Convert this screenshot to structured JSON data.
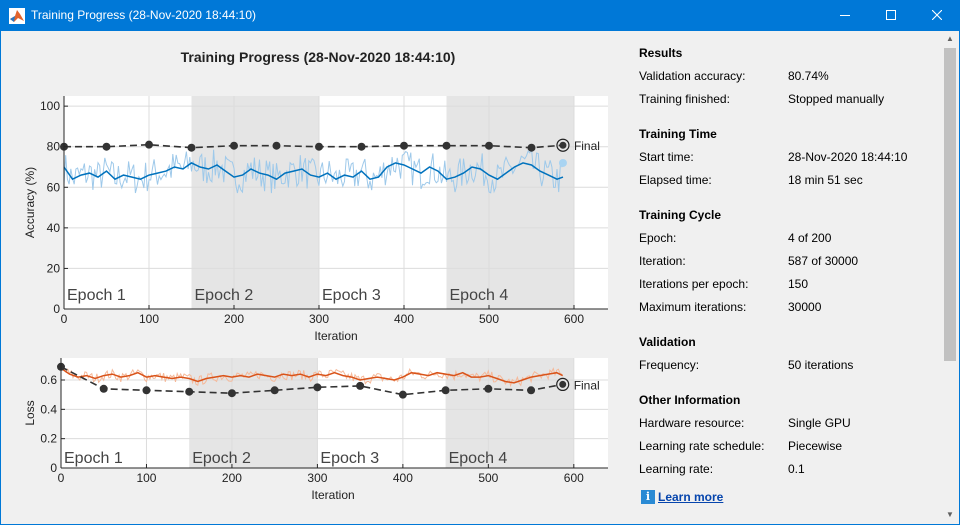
{
  "window": {
    "title": "Training Progress (28-Nov-2020 18:44:10)"
  },
  "plot_title": "Training Progress (28-Nov-2020 18:44:10)",
  "chart_data": [
    {
      "type": "line",
      "ylabel": "Accuracy (%)",
      "xlabel": "Iteration",
      "xlim": [
        0,
        640
      ],
      "ylim": [
        0,
        105
      ],
      "xticks": [
        0,
        100,
        200,
        300,
        400,
        500,
        600
      ],
      "yticks": [
        0,
        20,
        40,
        60,
        80,
        100
      ],
      "grid": true,
      "epoch_bands": [
        {
          "label": "Epoch 1",
          "start": 0,
          "end": 150,
          "shaded": false
        },
        {
          "label": "Epoch 2",
          "start": 150,
          "end": 300,
          "shaded": true
        },
        {
          "label": "Epoch 3",
          "start": 300,
          "end": 450,
          "shaded": false
        },
        {
          "label": "Epoch 4",
          "start": 450,
          "end": 600,
          "shaded": true
        }
      ],
      "smoothed": {
        "x": [
          0,
          10,
          20,
          30,
          40,
          50,
          60,
          70,
          80,
          90,
          100,
          110,
          120,
          130,
          140,
          150,
          160,
          170,
          180,
          190,
          200,
          210,
          220,
          230,
          240,
          250,
          260,
          270,
          280,
          290,
          300,
          310,
          320,
          330,
          340,
          350,
          360,
          370,
          380,
          390,
          400,
          410,
          420,
          430,
          440,
          450,
          460,
          470,
          480,
          490,
          500,
          510,
          520,
          530,
          540,
          550,
          560,
          570,
          580,
          587
        ],
        "y": [
          70,
          64,
          66,
          67,
          65,
          68,
          64,
          66,
          65,
          64,
          66,
          67,
          68,
          70,
          69,
          72,
          70,
          69,
          71,
          68,
          65,
          66,
          69,
          67,
          66,
          64,
          67,
          68,
          69,
          66,
          65,
          67,
          64,
          66,
          65,
          68,
          64,
          65,
          70,
          72,
          71,
          69,
          67,
          70,
          68,
          64,
          65,
          67,
          70,
          69,
          66,
          64,
          67,
          70,
          72,
          71,
          68,
          66,
          64,
          65
        ]
      },
      "raw_color": "#9ec9ea",
      "smoothed_color": "#0072bd",
      "validation": {
        "x": [
          0,
          50,
          100,
          150,
          200,
          250,
          300,
          350,
          400,
          450,
          500,
          550,
          587
        ],
        "y": [
          80,
          80,
          81,
          79.5,
          80.5,
          80.5,
          80,
          80,
          80.5,
          80.5,
          80.5,
          79.5,
          80.74
        ],
        "final_label": "Final",
        "final_x": 587,
        "final_y": 80.74
      },
      "last_raw_point": {
        "x": 587,
        "y": 72
      },
      "validation_color": "#333333"
    },
    {
      "type": "line",
      "ylabel": "Loss",
      "xlabel": "Iteration",
      "xlim": [
        0,
        640
      ],
      "ylim": [
        0,
        0.75
      ],
      "xticks": [
        0,
        100,
        200,
        300,
        400,
        500,
        600
      ],
      "yticks": [
        0,
        0.2,
        0.4,
        0.6
      ],
      "grid": true,
      "epoch_bands": [
        {
          "label": "Epoch 1",
          "start": 0,
          "end": 150,
          "shaded": false
        },
        {
          "label": "Epoch 2",
          "start": 150,
          "end": 300,
          "shaded": true
        },
        {
          "label": "Epoch 3",
          "start": 300,
          "end": 450,
          "shaded": false
        },
        {
          "label": "Epoch 4",
          "start": 450,
          "end": 600,
          "shaded": true
        }
      ],
      "smoothed": {
        "x": [
          0,
          10,
          20,
          30,
          40,
          50,
          60,
          70,
          80,
          90,
          100,
          110,
          120,
          130,
          140,
          150,
          160,
          170,
          180,
          190,
          200,
          210,
          220,
          230,
          240,
          250,
          260,
          270,
          280,
          290,
          300,
          310,
          320,
          330,
          340,
          350,
          360,
          370,
          380,
          390,
          400,
          410,
          420,
          430,
          440,
          450,
          460,
          470,
          480,
          490,
          500,
          510,
          520,
          530,
          540,
          550,
          560,
          570,
          580,
          587
        ],
        "y": [
          0.68,
          0.64,
          0.62,
          0.63,
          0.61,
          0.63,
          0.64,
          0.62,
          0.63,
          0.65,
          0.62,
          0.63,
          0.62,
          0.61,
          0.62,
          0.61,
          0.59,
          0.61,
          0.62,
          0.63,
          0.62,
          0.63,
          0.62,
          0.64,
          0.63,
          0.62,
          0.64,
          0.63,
          0.64,
          0.62,
          0.64,
          0.63,
          0.65,
          0.63,
          0.62,
          0.6,
          0.61,
          0.62,
          0.61,
          0.6,
          0.62,
          0.65,
          0.64,
          0.63,
          0.65,
          0.64,
          0.63,
          0.65,
          0.62,
          0.62,
          0.63,
          0.61,
          0.59,
          0.58,
          0.6,
          0.62,
          0.63,
          0.64,
          0.65,
          0.63
        ]
      },
      "raw_color": "#f5b99a",
      "smoothed_color": "#d95319",
      "validation": {
        "x": [
          0,
          50,
          100,
          150,
          200,
          250,
          300,
          350,
          400,
          450,
          500,
          550,
          587
        ],
        "y": [
          0.69,
          0.54,
          0.53,
          0.52,
          0.51,
          0.53,
          0.55,
          0.56,
          0.5,
          0.53,
          0.54,
          0.53,
          0.57
        ],
        "final_label": "Final",
        "final_x": 587,
        "final_y": 0.57
      },
      "validation_color": "#333333"
    }
  ],
  "info": {
    "sections": [
      {
        "title": "Results",
        "rows": [
          {
            "label": "Validation accuracy:",
            "value": "80.74%"
          },
          {
            "label": "Training finished:",
            "value": "Stopped manually"
          }
        ]
      },
      {
        "title": "Training Time",
        "rows": [
          {
            "label": "Start time:",
            "value": "28-Nov-2020 18:44:10"
          },
          {
            "label": "Elapsed time:",
            "value": "18 min 51 sec"
          }
        ]
      },
      {
        "title": "Training Cycle",
        "rows": [
          {
            "label": "Epoch:",
            "value": "4 of 200"
          },
          {
            "label": "Iteration:",
            "value": "587 of 30000"
          },
          {
            "label": "Iterations per epoch:",
            "value": "150"
          },
          {
            "label": "Maximum iterations:",
            "value": "30000"
          }
        ]
      },
      {
        "title": "Validation",
        "rows": [
          {
            "label": "Frequency:",
            "value": "50 iterations"
          }
        ]
      },
      {
        "title": "Other Information",
        "rows": [
          {
            "label": "Hardware resource:",
            "value": "Single GPU"
          },
          {
            "label": "Learning rate schedule:",
            "value": "Piecewise"
          },
          {
            "label": "Learning rate:",
            "value": "0.1"
          }
        ]
      }
    ],
    "learn_more": "Learn more",
    "info_icon": "i"
  },
  "icons": {
    "app": "matlab-icon",
    "minimize": "minimize-icon",
    "maximize": "maximize-icon",
    "close": "close-icon",
    "info": "info-icon"
  }
}
